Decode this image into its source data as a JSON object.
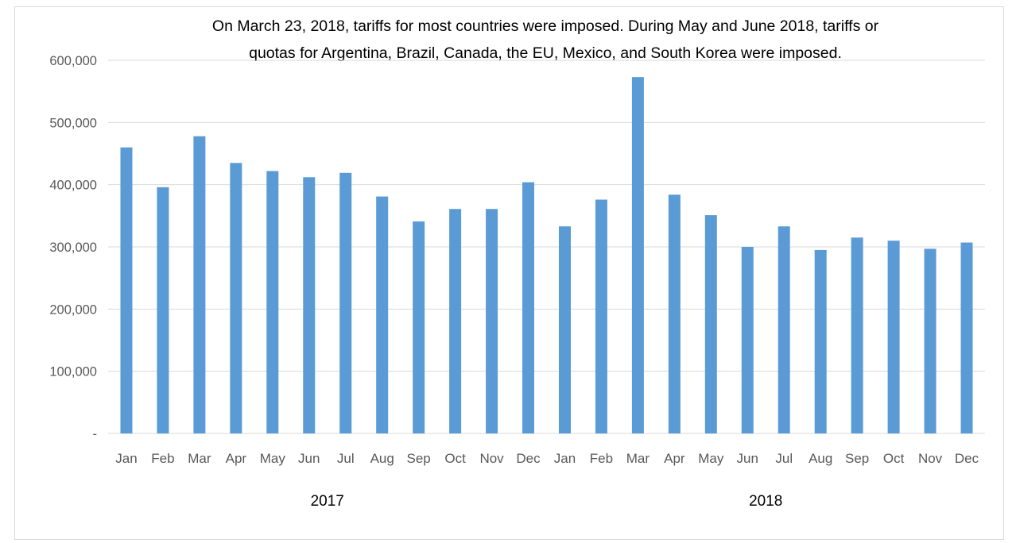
{
  "chart_data": {
    "type": "bar",
    "annotation": [
      "On March 23, 2018, tariffs for most countries were imposed. During May and June 2018, tariffs or",
      "quotas for Argentina, Brazil, Canada, the EU, Mexico, and South Korea were imposed."
    ],
    "categories": [
      "Jan",
      "Feb",
      "Mar",
      "Apr",
      "May",
      "Jun",
      "Jul",
      "Aug",
      "Sep",
      "Oct",
      "Nov",
      "Dec",
      "Jan",
      "Feb",
      "Mar",
      "Apr",
      "May",
      "Jun",
      "Jul",
      "Aug",
      "Sep",
      "Oct",
      "Nov",
      "Dec"
    ],
    "groups": [
      {
        "label": "2017",
        "start": 0,
        "end": 11
      },
      {
        "label": "2018",
        "start": 12,
        "end": 23
      }
    ],
    "values": [
      460000,
      396000,
      478000,
      435000,
      422000,
      412000,
      419000,
      381000,
      341000,
      361000,
      361000,
      404000,
      333000,
      376000,
      573000,
      384000,
      351000,
      300000,
      333000,
      295000,
      315000,
      310000,
      297000,
      307000
    ],
    "ylim": [
      0,
      600000
    ],
    "yticks": [
      0,
      100000,
      200000,
      300000,
      400000,
      500000,
      600000
    ],
    "ytick_labels": [
      "-",
      "100,000",
      "200,000",
      "300,000",
      "400,000",
      "500,000",
      "600,000"
    ],
    "grid": true,
    "bar_color": "#5b9bd5",
    "xlabel": "",
    "ylabel": ""
  }
}
